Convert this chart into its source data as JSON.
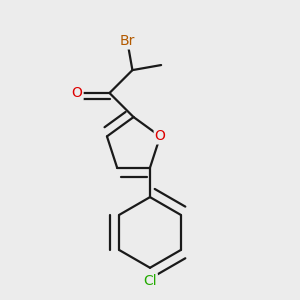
{
  "bg_color": "#ececec",
  "bond_color": "#1a1a1a",
  "bond_width": 1.6,
  "atom_colors": {
    "Br": "#b35a00",
    "O": "#dd0000",
    "Cl": "#22aa00"
  },
  "font_size": 10,
  "figsize": [
    3.0,
    3.0
  ],
  "dpi": 100,
  "xlim": [
    0.0,
    1.0
  ],
  "ylim": [
    0.0,
    1.0
  ]
}
